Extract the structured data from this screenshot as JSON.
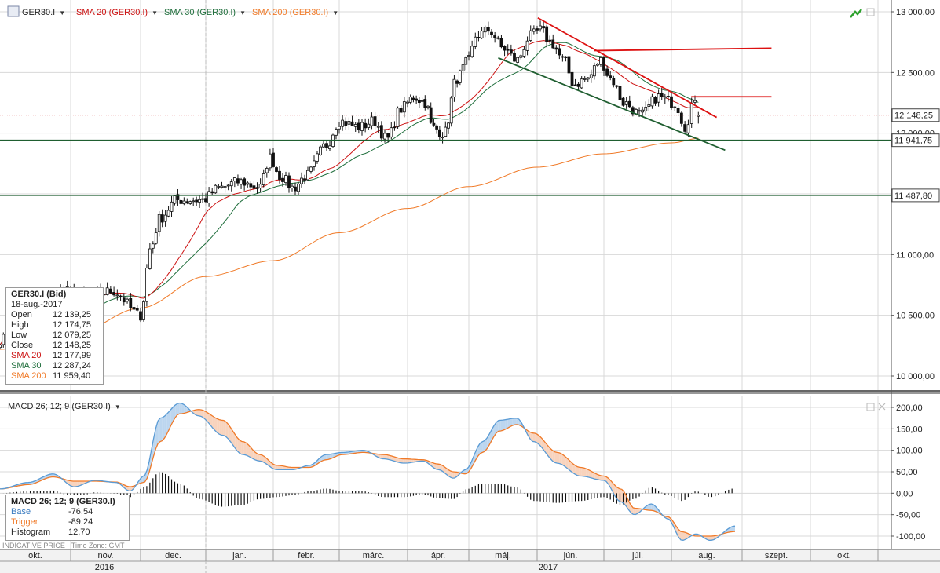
{
  "top_bar": {
    "instrument": "GER30.I",
    "sma20_label": "SMA 20 (GER30.I)",
    "sma30_label": "SMA 30 (GER30.I)",
    "sma200_label": "SMA 200 (GER30.I)",
    "dropdown_glyph": "▼"
  },
  "macd_header": {
    "label": "MACD 26; 12; 9 (GER30.I)",
    "dropdown_glyph": "▼"
  },
  "price_info": {
    "title": "GER30.I (Bid)",
    "date": "18-aug.-2017",
    "rows": [
      {
        "key": "Open",
        "value": "12 139,25"
      },
      {
        "key": "High",
        "value": "12 174,75"
      },
      {
        "key": "Low",
        "value": "12 079,25"
      },
      {
        "key": "Close",
        "value": "12 148,25"
      },
      {
        "key": "SMA 20",
        "value": "12 177,99"
      },
      {
        "key": "SMA 30",
        "value": "12 287,24"
      },
      {
        "key": "SMA 200",
        "value": "11 959,40"
      }
    ]
  },
  "macd_info": {
    "title": "MACD 26; 12; 9 (GER30.I)",
    "rows": [
      {
        "key": "Base",
        "value": "-76,54"
      },
      {
        "key": "Trigger",
        "value": "-89,24"
      },
      {
        "key": "Histogram",
        "value": "12,70"
      }
    ]
  },
  "footer_note": "INDICATIVE PRICE",
  "timezone_note": "Time Zone: GMT",
  "colors": {
    "sma20": "#cc1111",
    "sma30": "#1f6e3c",
    "sma200": "#f07a28",
    "candle_up": "#ffffff",
    "candle_down": "#111111",
    "trend_red": "#dd1111",
    "level_green": "#1f5e30",
    "macd_base": "#5a9bd5",
    "macd_trigger": "#f07a28"
  },
  "chart_data": [
    {
      "type": "candlestick",
      "instrument": "GER30.I",
      "y_axis_ticks": [
        "13 000,00",
        "12 500,00",
        "12 000,00",
        "11 500,00",
        "11 000,00",
        "10 500,00",
        "10 000,00"
      ],
      "ylim": [
        9900,
        13050
      ],
      "x_axis_months": [
        "okt.",
        "nov.",
        "dec.",
        "jan.",
        "febr.",
        "márc.",
        "ápr.",
        "máj.",
        "jún.",
        "júl.",
        "aug.",
        "szept.",
        "okt."
      ],
      "x_axis_years": [
        "2016",
        "2017"
      ],
      "price_tags": [
        {
          "value": 12148.25,
          "label": "12 148,25"
        },
        {
          "value": 11941.75,
          "label": "11 941,75"
        },
        {
          "value": 11487.8,
          "label": "11 487,80"
        }
      ],
      "horizontal_levels": [
        11941.75,
        11487.8
      ],
      "trendlines": [
        {
          "name": "resistance-trend",
          "from": {
            "month": 8.01,
            "price": 12950
          },
          "to": {
            "month": 10.64,
            "price": 12130
          }
        },
        {
          "name": "horizontal-12700",
          "from": {
            "month": 8.85,
            "price": 12680
          },
          "to": {
            "month": 11.43,
            "price": 12700
          }
        },
        {
          "name": "horizontal-12300",
          "from": {
            "month": 10.28,
            "price": 12300
          },
          "to": {
            "month": 11.43,
            "price": 12300
          }
        },
        {
          "name": "support-trend",
          "from": {
            "month": 7.43,
            "price": 12620
          },
          "to": {
            "month": 10.76,
            "price": 11860
          }
        }
      ],
      "anchors": [
        [
          0.0,
          10300
        ],
        [
          0.6,
          10600
        ],
        [
          0.9,
          10700
        ],
        [
          1.2,
          10650
        ],
        [
          1.6,
          10700
        ],
        [
          2.0,
          10500
        ],
        [
          2.15,
          11050
        ],
        [
          2.3,
          11300
        ],
        [
          2.55,
          11450
        ],
        [
          2.95,
          11450
        ],
        [
          3.2,
          11550
        ],
        [
          3.5,
          11600
        ],
        [
          3.8,
          11550
        ],
        [
          3.95,
          11800
        ],
        [
          4.1,
          11650
        ],
        [
          4.3,
          11550
        ],
        [
          4.5,
          11650
        ],
        [
          4.8,
          11900
        ],
        [
          5.0,
          12100
        ],
        [
          5.3,
          12050
        ],
        [
          5.5,
          12100
        ],
        [
          5.7,
          11950
        ],
        [
          5.9,
          12200
        ],
        [
          6.1,
          12300
        ],
        [
          6.3,
          12250
        ],
        [
          6.4,
          12050
        ],
        [
          6.6,
          12000
        ],
        [
          6.8,
          12450
        ],
        [
          7.0,
          12600
        ],
        [
          7.1,
          12800
        ],
        [
          7.3,
          12850
        ],
        [
          7.5,
          12700
        ],
        [
          7.7,
          12600
        ],
        [
          7.9,
          12800
        ],
        [
          8.05,
          12850
        ],
        [
          8.2,
          12750
        ],
        [
          8.4,
          12600
        ],
        [
          8.55,
          12400
        ],
        [
          8.75,
          12450
        ],
        [
          8.95,
          12600
        ],
        [
          9.1,
          12450
        ],
        [
          9.3,
          12250
        ],
        [
          9.55,
          12150
        ],
        [
          9.8,
          12300
        ],
        [
          10.05,
          12250
        ],
        [
          10.2,
          12050
        ],
        [
          10.3,
          12250
        ],
        [
          10.41,
          12148
        ]
      ],
      "series": [
        {
          "name": "SMA 20",
          "last": 12177.99
        },
        {
          "name": "SMA 30",
          "last": 12287.24
        },
        {
          "name": "SMA 200",
          "last": 11959.4
        }
      ]
    },
    {
      "type": "macd",
      "y_axis_ticks": [
        "200,00",
        "150,00",
        "100,00",
        "50,00",
        "0,00",
        "-50,00",
        "-100,00"
      ],
      "ylim": [
        -115,
        215
      ],
      "base_anchors": [
        [
          0.0,
          10
        ],
        [
          0.4,
          25
        ],
        [
          0.75,
          45
        ],
        [
          1.05,
          15
        ],
        [
          1.35,
          30
        ],
        [
          1.65,
          25
        ],
        [
          1.85,
          5
        ],
        [
          2.05,
          40
        ],
        [
          2.3,
          175
        ],
        [
          2.6,
          210
        ],
        [
          2.9,
          180
        ],
        [
          3.25,
          135
        ],
        [
          3.55,
          90
        ],
        [
          3.8,
          75
        ],
        [
          4.05,
          55
        ],
        [
          4.3,
          55
        ],
        [
          4.55,
          65
        ],
        [
          4.8,
          90
        ],
        [
          5.05,
          95
        ],
        [
          5.35,
          100
        ],
        [
          5.65,
          80
        ],
        [
          5.95,
          70
        ],
        [
          6.25,
          75
        ],
        [
          6.5,
          55
        ],
        [
          6.75,
          35
        ],
        [
          6.95,
          55
        ],
        [
          7.2,
          120
        ],
        [
          7.45,
          170
        ],
        [
          7.7,
          175
        ],
        [
          7.95,
          120
        ],
        [
          8.3,
          70
        ],
        [
          8.65,
          40
        ],
        [
          9.0,
          30
        ],
        [
          9.25,
          -20
        ],
        [
          9.45,
          -50
        ],
        [
          9.7,
          -25
        ],
        [
          9.95,
          -60
        ],
        [
          10.15,
          -110
        ],
        [
          10.35,
          -95
        ],
        [
          10.55,
          -110
        ],
        [
          10.9,
          -76.54
        ]
      ],
      "trigger_anchors": [
        [
          0.0,
          10
        ],
        [
          0.4,
          20
        ],
        [
          0.75,
          38
        ],
        [
          1.05,
          28
        ],
        [
          1.35,
          28
        ],
        [
          1.65,
          26
        ],
        [
          1.85,
          15
        ],
        [
          2.05,
          25
        ],
        [
          2.3,
          120
        ],
        [
          2.6,
          185
        ],
        [
          2.9,
          195
        ],
        [
          3.25,
          170
        ],
        [
          3.55,
          120
        ],
        [
          3.8,
          90
        ],
        [
          4.05,
          65
        ],
        [
          4.3,
          60
        ],
        [
          4.55,
          60
        ],
        [
          4.8,
          78
        ],
        [
          5.05,
          90
        ],
        [
          5.35,
          95
        ],
        [
          5.65,
          90
        ],
        [
          5.95,
          80
        ],
        [
          6.25,
          78
        ],
        [
          6.5,
          68
        ],
        [
          6.75,
          50
        ],
        [
          6.95,
          45
        ],
        [
          7.2,
          95
        ],
        [
          7.45,
          145
        ],
        [
          7.7,
          160
        ],
        [
          7.95,
          140
        ],
        [
          8.3,
          95
        ],
        [
          8.65,
          60
        ],
        [
          9.0,
          40
        ],
        [
          9.25,
          10
        ],
        [
          9.45,
          -35
        ],
        [
          9.7,
          -40
        ],
        [
          9.95,
          -55
        ],
        [
          10.15,
          -90
        ],
        [
          10.35,
          -100
        ],
        [
          10.55,
          -100
        ],
        [
          10.9,
          -89.24
        ]
      ],
      "series": [
        {
          "name": "Base",
          "last": -76.54
        },
        {
          "name": "Trigger",
          "last": -89.24
        },
        {
          "name": "Histogram",
          "last": 12.7
        }
      ]
    }
  ]
}
